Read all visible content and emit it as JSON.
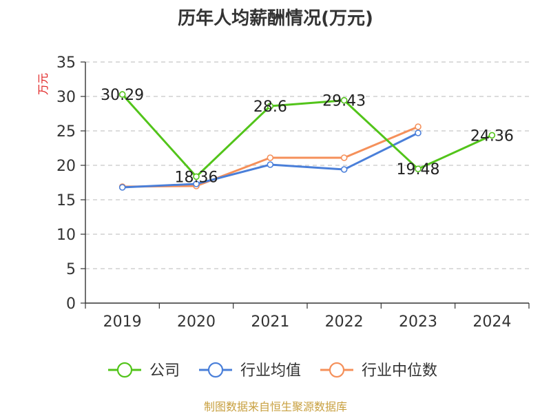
{
  "chart_data": {
    "type": "line",
    "title": "历年人均薪酬情况(万元)",
    "ylabel": "万元",
    "xlabel": "",
    "categories": [
      "2019",
      "2020",
      "2021",
      "2022",
      "2023",
      "2024"
    ],
    "ylim": [
      0,
      35
    ],
    "yticks": [
      0,
      5,
      10,
      15,
      20,
      25,
      30,
      35
    ],
    "grid": true,
    "legend_position": "bottom",
    "series": [
      {
        "name": "公司",
        "color": "#52c41a",
        "values": [
          30.29,
          18.36,
          28.6,
          29.43,
          19.48,
          24.36
        ],
        "show_labels": true
      },
      {
        "name": "行业均值",
        "color": "#4a7fd9",
        "values": [
          16.8,
          17.3,
          20.1,
          19.4,
          24.7,
          null
        ],
        "show_labels": false
      },
      {
        "name": "行业中位数",
        "color": "#f5905a",
        "values": [
          16.9,
          17.0,
          21.1,
          21.1,
          25.6,
          null
        ],
        "show_labels": false
      }
    ]
  },
  "footer": {
    "source": "制图数据来自恒生聚源数据库"
  }
}
